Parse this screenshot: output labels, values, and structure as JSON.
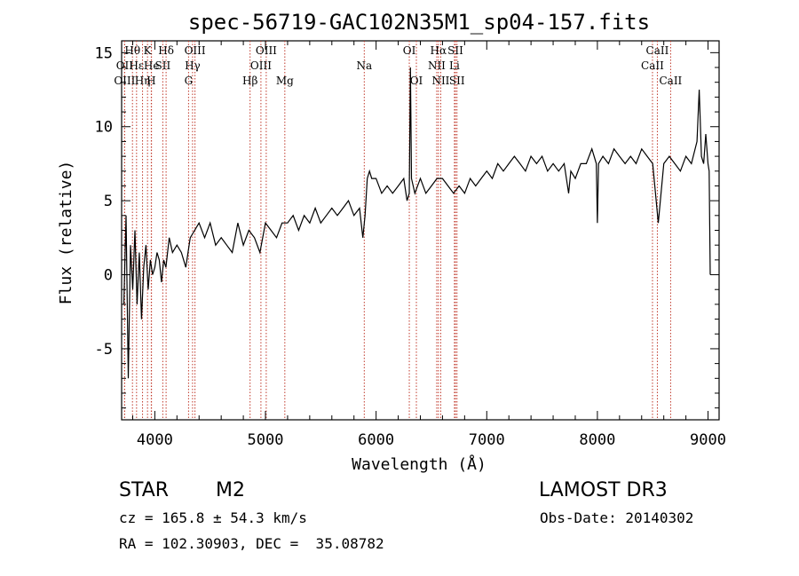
{
  "chart_data": {
    "type": "line",
    "title": "spec-56719-GAC102N35M1_sp04-157.fits",
    "xlabel": "Wavelength (Å)",
    "ylabel": "Flux (relative)",
    "xlim": [
      3700,
      9100
    ],
    "ylim": [
      -9.8,
      15.8
    ],
    "xticks": [
      4000,
      5000,
      6000,
      7000,
      8000,
      9000
    ],
    "yticks": [
      -5,
      0,
      5,
      10,
      15
    ],
    "series": [
      {
        "name": "spectrum",
        "color": "#000000",
        "x": [
          3720,
          3740,
          3760,
          3780,
          3800,
          3820,
          3840,
          3860,
          3880,
          3900,
          3920,
          3940,
          3960,
          3980,
          4000,
          4020,
          4040,
          4060,
          4080,
          4100,
          4130,
          4160,
          4200,
          4240,
          4280,
          4320,
          4360,
          4400,
          4450,
          4500,
          4550,
          4600,
          4650,
          4700,
          4750,
          4800,
          4850,
          4900,
          4950,
          5000,
          5050,
          5100,
          5150,
          5200,
          5250,
          5300,
          5350,
          5400,
          5450,
          5500,
          5550,
          5600,
          5650,
          5700,
          5750,
          5800,
          5850,
          5880,
          5900,
          5920,
          5940,
          5960,
          6000,
          6050,
          6100,
          6150,
          6200,
          6250,
          6280,
          6300,
          6310,
          6320,
          6350,
          6400,
          6450,
          6500,
          6550,
          6600,
          6650,
          6700,
          6750,
          6800,
          6850,
          6900,
          6950,
          7000,
          7050,
          7100,
          7150,
          7200,
          7250,
          7300,
          7350,
          7400,
          7450,
          7500,
          7550,
          7600,
          7650,
          7700,
          7740,
          7760,
          7800,
          7850,
          7900,
          7950,
          7990,
          8000,
          8010,
          8050,
          8100,
          8150,
          8200,
          8250,
          8300,
          8350,
          8400,
          8450,
          8500,
          8550,
          8600,
          8650,
          8700,
          8750,
          8800,
          8850,
          8900,
          8920,
          8940,
          8960,
          8980,
          9000,
          9010,
          9020
        ],
        "y": [
          -2,
          4,
          -7,
          2,
          -1,
          3,
          -2,
          1.5,
          -3,
          0.5,
          2,
          -1,
          1,
          0,
          0.5,
          1.5,
          1,
          -0.5,
          1,
          0.5,
          2.5,
          1.5,
          2,
          1.5,
          0.5,
          2.5,
          3,
          3.5,
          2.5,
          3.5,
          2,
          2.5,
          2,
          1.5,
          3.5,
          2,
          3,
          2.5,
          1.5,
          3.5,
          3,
          2.5,
          3.5,
          3.5,
          4,
          3,
          4,
          3.5,
          4.5,
          3.5,
          4,
          4.5,
          4,
          4.5,
          5,
          4,
          4.5,
          2.5,
          4,
          6.5,
          7,
          6.5,
          6.5,
          5.5,
          6,
          5.5,
          6,
          6.5,
          5,
          5.5,
          14,
          6.5,
          5.5,
          6.5,
          5.5,
          6,
          6.5,
          6.5,
          6,
          5.5,
          6,
          5.5,
          6.5,
          6,
          6.5,
          7,
          6.5,
          7.5,
          7,
          7.5,
          8,
          7.5,
          7,
          8,
          7.5,
          8,
          7,
          7.5,
          7,
          7.5,
          5.5,
          7,
          6.5,
          7.5,
          7.5,
          8.5,
          7.5,
          3.5,
          7.5,
          8,
          7.5,
          8.5,
          8,
          7.5,
          8,
          7.5,
          8.5,
          8,
          7.5,
          3.5,
          7.5,
          8,
          7.5,
          7,
          8,
          7.5,
          9,
          12.5,
          8,
          7.5,
          9.5,
          7.5,
          7,
          0
        ]
      }
    ],
    "lines": [
      {
        "name": "Hθ",
        "x": 3798,
        "row": 0
      },
      {
        "name": "OII",
        "x": 3727,
        "row": 1
      },
      {
        "name": "OIII",
        "x": 3727,
        "row": 2
      },
      {
        "name": "Hε",
        "x": 3835,
        "row": 1
      },
      {
        "name": "Hη",
        "x": 3889,
        "row": 2
      },
      {
        "name": "K",
        "x": 3934,
        "row": 0
      },
      {
        "name": "He",
        "x": 3970,
        "row": 1
      },
      {
        "name": "SII",
        "x": 4072,
        "row": 1
      },
      {
        "name": "H",
        "x": 3968,
        "row": 2
      },
      {
        "name": "Hδ",
        "x": 4102,
        "row": 0
      },
      {
        "name": "OIII",
        "x": 4363,
        "row": 0
      },
      {
        "name": "Hγ",
        "x": 4341,
        "row": 1
      },
      {
        "name": "G",
        "x": 4305,
        "row": 2
      },
      {
        "name": "Hβ",
        "x": 4861,
        "row": 2
      },
      {
        "name": "OIII",
        "x": 5007,
        "row": 0
      },
      {
        "name": "OIII",
        "x": 4959,
        "row": 1
      },
      {
        "name": "Mg",
        "x": 5175,
        "row": 2
      },
      {
        "name": "Na",
        "x": 5893,
        "row": 1
      },
      {
        "name": "OI",
        "x": 6300,
        "row": 0
      },
      {
        "name": "OI",
        "x": 6364,
        "row": 2
      },
      {
        "name": "Hα",
        "x": 6563,
        "row": 0
      },
      {
        "name": "NII",
        "x": 6548,
        "row": 1
      },
      {
        "name": "NII",
        "x": 6584,
        "row": 2
      },
      {
        "name": "SII",
        "x": 6717,
        "row": 0
      },
      {
        "name": "Li",
        "x": 6708,
        "row": 1
      },
      {
        "name": "SII",
        "x": 6731,
        "row": 2
      },
      {
        "name": "CaII",
        "x": 8542,
        "row": 0
      },
      {
        "name": "CaII",
        "x": 8498,
        "row": 1
      },
      {
        "name": "CaII",
        "x": 8662,
        "row": 2
      }
    ]
  },
  "info": {
    "object_class": "STAR",
    "subclass": "M2",
    "survey": "LAMOST DR3",
    "cz_line": "cz = 165.8 ± 54.3 km/s",
    "obs_date_line": "Obs-Date: 20140302",
    "coords_line": "RA = 102.30903, DEC =  35.08782"
  }
}
